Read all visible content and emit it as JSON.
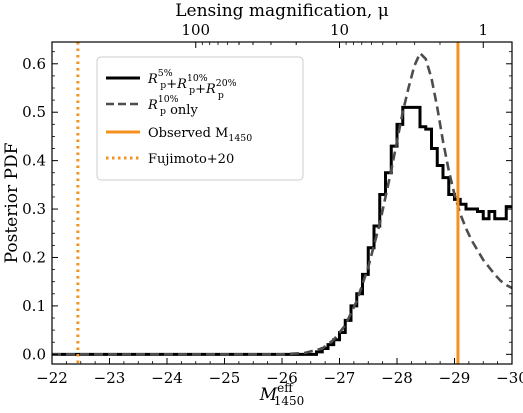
{
  "chart_data": {
    "type": "line",
    "xlabel": "M",
    "xlabel_sup": "eff",
    "xlabel_sub": "1450",
    "ylabel": "Posterior PDF",
    "top_xlabel": "Lensing magnification, μ",
    "xlim": [
      -22,
      -30
    ],
    "ylim": [
      -0.02,
      0.645
    ],
    "x_ticks": [
      -22,
      -23,
      -24,
      -25,
      -26,
      -27,
      -28,
      -29,
      -30
    ],
    "x_tick_labels": [
      "−22",
      "−23",
      "−24",
      "−25",
      "−26",
      "−27",
      "−28",
      "−29",
      "−30"
    ],
    "y_ticks": [
      0.0,
      0.1,
      0.2,
      0.3,
      0.4,
      0.5,
      0.6
    ],
    "y_tick_labels": [
      "0.0",
      "0.1",
      "0.2",
      "0.3",
      "0.4",
      "0.5",
      "0.6"
    ],
    "top_ticks": [
      {
        "label": "100",
        "x": -24.5
      },
      {
        "label": "10",
        "x": -27.0
      },
      {
        "label": "1",
        "x": -29.5
      }
    ],
    "legend_position": "upper-left",
    "series": [
      {
        "name_parts": [
          {
            "t": "R",
            "sup": "5%",
            "sub": "p"
          },
          {
            "t": "+R",
            "sup": "10%",
            "sub": "p"
          },
          {
            "t": "+R",
            "sup": "20%",
            "sub": "p"
          }
        ],
        "style": "step",
        "color": "#000000",
        "edges": [
          -22.0,
          -26.0,
          -26.2,
          -26.4,
          -26.6,
          -26.7,
          -26.8,
          -26.9,
          -27.0,
          -27.1,
          -27.2,
          -27.3,
          -27.4,
          -27.5,
          -27.6,
          -27.7,
          -27.8,
          -27.9,
          -28.0,
          -28.1,
          -28.2,
          -28.3,
          -28.4,
          -28.5,
          -28.6,
          -28.7,
          -28.8,
          -28.9,
          -29.0,
          -29.1,
          -29.2,
          -29.3,
          -29.4,
          -29.5,
          -29.6,
          -29.7,
          -29.8,
          -29.9,
          -30.0
        ],
        "values": [
          0.0,
          0.0,
          0.0,
          0.0,
          0.005,
          0.012,
          0.02,
          0.03,
          0.045,
          0.07,
          0.1,
          0.125,
          0.165,
          0.22,
          0.265,
          0.33,
          0.375,
          0.43,
          0.475,
          0.51,
          0.51,
          0.51,
          0.47,
          0.465,
          0.425,
          0.39,
          0.365,
          0.33,
          0.32,
          0.31,
          0.3,
          0.3,
          0.295,
          0.28,
          0.295,
          0.28,
          0.28,
          0.305
        ]
      },
      {
        "name_parts": [
          {
            "t": "R",
            "sup": "10%",
            "sub": "p"
          },
          {
            "t": " only"
          }
        ],
        "style": "dashed",
        "color": "#4d4d4d",
        "x": [
          -22.0,
          -26.0,
          -26.4,
          -26.7,
          -26.9,
          -27.1,
          -27.3,
          -27.5,
          -27.7,
          -27.9,
          -28.0,
          -28.1,
          -28.2,
          -28.3,
          -28.4,
          -28.5,
          -28.6,
          -28.7,
          -28.8,
          -28.9,
          -29.0,
          -29.1,
          -29.2,
          -29.3,
          -29.4,
          -29.5,
          -29.6,
          -29.7,
          -29.8,
          -29.9,
          -30.0
        ],
        "y": [
          0.0,
          0.0,
          0.003,
          0.012,
          0.03,
          0.06,
          0.11,
          0.18,
          0.27,
          0.38,
          0.44,
          0.5,
          0.55,
          0.595,
          0.622,
          0.61,
          0.57,
          0.51,
          0.44,
          0.38,
          0.33,
          0.29,
          0.26,
          0.235,
          0.215,
          0.195,
          0.18,
          0.165,
          0.152,
          0.143,
          0.137
        ]
      },
      {
        "name_parts": [
          {
            "t": "Observed M",
            "sub": "1450"
          }
        ],
        "style": "vline-solid",
        "color": "#f5921e",
        "x": -29.06
      },
      {
        "name_parts": [
          {
            "t": "Fujimoto+20"
          }
        ],
        "style": "vline-dotted",
        "color": "#f5921e",
        "x": -22.45
      }
    ]
  }
}
